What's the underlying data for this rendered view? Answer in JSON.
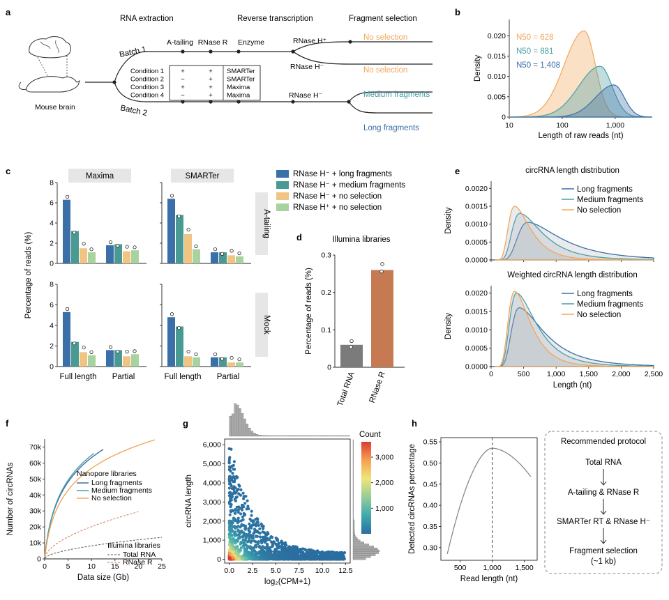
{
  "panel_letters": [
    "a",
    "b",
    "c",
    "d",
    "e",
    "f",
    "g",
    "h"
  ],
  "panel_a": {
    "stages": [
      "RNA extraction",
      "Reverse transcription",
      "Fragment selection"
    ],
    "source_label": "Mouse brain",
    "batches": [
      "Batch 1",
      "Batch 2"
    ],
    "treatments": [
      "A-tailing",
      "RNase R",
      "Enzyme"
    ],
    "conditions": [
      {
        "name": "Condition 1",
        "a": "+",
        "r": "+",
        "enzyme": "SMARTer"
      },
      {
        "name": "Condition 2",
        "a": "−",
        "r": "+",
        "enzyme": "SMARTer"
      },
      {
        "name": "Condition 3",
        "a": "+",
        "r": "+",
        "enzyme": "Maxima"
      },
      {
        "name": "Condition 4",
        "a": "−",
        "r": "+",
        "enzyme": "Maxima"
      }
    ],
    "rnaseh_plus": "RNase H⁺",
    "rnaseh_minus": "RNase H⁻",
    "rnaseh_minus2": "RNase H⁻",
    "outcomes": [
      "No selection",
      "No selection",
      "Medium fragments",
      "Long fragments"
    ],
    "colors": {
      "orange": "#f2a65a",
      "teal": "#4a9fa5",
      "blue": "#3b6fa8",
      "green": "#86c29a"
    }
  },
  "chart_data": [
    {
      "panel": "b",
      "type": "area",
      "xlabel": "Length of raw reads (nt)",
      "ylabel": "Density",
      "x_scale": "log",
      "xlim": [
        10,
        5000
      ],
      "ylim": [
        0,
        0.024
      ],
      "x_ticks": [
        "10",
        "100",
        "1,000"
      ],
      "y_ticks": [
        "0",
        "0.005",
        "0.010",
        "0.015",
        "0.020"
      ],
      "series": [
        {
          "name": "N50 = 628",
          "peak_x": 260,
          "peak_y": 0.0212,
          "sigma": 0.28,
          "color": "#f2a65a"
        },
        {
          "name": "N50 = 881",
          "peak_x": 520,
          "peak_y": 0.0125,
          "sigma": 0.3,
          "color": "#4a9fa5"
        },
        {
          "name": "N50 = 1,408",
          "peak_x": 950,
          "peak_y": 0.0079,
          "sigma": 0.26,
          "color": "#3b6fa8"
        }
      ]
    },
    {
      "panel": "c",
      "type": "bar",
      "ylabel": "Percentage of reads (%)",
      "columns": [
        "Maxima",
        "SMARTer"
      ],
      "rows": [
        "A-tailing",
        "Mock"
      ],
      "categories": [
        "Full length",
        "Partial"
      ],
      "ylim": [
        0,
        8
      ],
      "y_ticks": [
        "0",
        "2",
        "4",
        "6",
        "8"
      ],
      "legend": [
        "RNase H⁻ + long fragments",
        "RNase H⁻ + medium fragments",
        "RNase H⁻ + no selection",
        "RNase H⁺ + no selection"
      ],
      "colors": [
        "#3b6fa8",
        "#4a9a94",
        "#f0c584",
        "#a9d39e"
      ],
      "facets": [
        {
          "row": "A-tailing",
          "col": "Maxima",
          "values": [
            [
              6.3,
              3.2,
              1.5,
              1.1
            ],
            [
              1.8,
              1.9,
              1.2,
              1.3
            ]
          ]
        },
        {
          "row": "A-tailing",
          "col": "SMARTer",
          "values": [
            [
              6.4,
              4.8,
              2.9,
              1.4
            ],
            [
              1.1,
              1.1,
              0.8,
              0.7
            ]
          ]
        },
        {
          "row": "Mock",
          "col": "Maxima",
          "values": [
            [
              5.3,
              2.4,
              1.4,
              1.1
            ],
            [
              1.6,
              1.6,
              1.0,
              1.2
            ]
          ]
        },
        {
          "row": "Mock",
          "col": "SMARTer",
          "values": [
            [
              4.8,
              3.9,
              1.0,
              0.9
            ],
            [
              0.9,
              0.9,
              0.4,
              0.4
            ]
          ]
        }
      ]
    },
    {
      "panel": "d",
      "type": "bar",
      "title": "Illumina libraries",
      "ylabel": "Percentage of reads (%)",
      "categories": [
        "Total RNA",
        "RNase R"
      ],
      "values": [
        0.06,
        0.26
      ],
      "ylim": [
        0,
        0.3
      ],
      "y_ticks": [
        "0",
        "0.1",
        "0.2",
        "0.3"
      ],
      "colors": [
        "#7b7b7b",
        "#c67a52"
      ]
    },
    {
      "panel": "e",
      "type": "area",
      "xlabel": "Length (nt)",
      "ylabel": "Density",
      "xlim": [
        0,
        2500
      ],
      "ylim": [
        0,
        0.0022
      ],
      "x_ticks": [
        "0",
        "500",
        "1,000",
        "1,500",
        "2,000",
        "2,500"
      ],
      "y_ticks": [
        "0.0000",
        "0.0005",
        "0.0010",
        "0.0015",
        "0.0020"
      ],
      "subplots": [
        {
          "title": "circRNA length distribution",
          "series": [
            {
              "name": "Long fragments",
              "peak_x": 560,
              "peak_y": 0.00105,
              "color": "#3b6fa8"
            },
            {
              "name": "Medium fragments",
              "peak_x": 440,
              "peak_y": 0.0013,
              "color": "#4a9fa5"
            },
            {
              "name": "No selection",
              "peak_x": 360,
              "peak_y": 0.0015,
              "color": "#f2a65a"
            }
          ]
        },
        {
          "title": "Weighted circRNA length distribution",
          "series": [
            {
              "name": "Long fragments",
              "peak_x": 430,
              "peak_y": 0.0016,
              "color": "#3b6fa8"
            },
            {
              "name": "Medium fragments",
              "peak_x": 390,
              "peak_y": 0.002,
              "color": "#4a9fa5"
            },
            {
              "name": "No selection",
              "peak_x": 360,
              "peak_y": 0.00205,
              "color": "#f2a65a"
            }
          ]
        }
      ]
    },
    {
      "panel": "f",
      "type": "line",
      "xlabel": "Data size (Gb)",
      "ylabel": "Number of circRNAs",
      "xlim": [
        0,
        25
      ],
      "ylim": [
        0,
        75000
      ],
      "x_ticks": [
        "0",
        "5",
        "10",
        "15",
        "20",
        "25"
      ],
      "y_ticks": [
        "0",
        "10k",
        "20k",
        "30k",
        "40k",
        "50k",
        "60k",
        "70k"
      ],
      "legend_title_1": "Nanopore libraries",
      "legend_title_2": "Illumina libraries",
      "series": [
        {
          "name": "Long fragments",
          "x_max": 12.5,
          "y_max": 68500,
          "color": "#3b6fa8",
          "dash": false
        },
        {
          "name": "Medium fragments",
          "x_max": 10.5,
          "y_max": 66000,
          "color": "#4a9fa5",
          "dash": false
        },
        {
          "name": "No selection",
          "x_max": 23.5,
          "y_max": 74500,
          "color": "#f2a65a",
          "dash": false
        },
        {
          "name": "Total RNA",
          "x_max": 25,
          "y_max": 13500,
          "color": "#555555",
          "dash": true
        },
        {
          "name": "RNase R",
          "x_max": 20,
          "y_max": 29500,
          "color": "#c67a52",
          "dash": true
        }
      ]
    },
    {
      "panel": "g",
      "type": "heatmap",
      "xlabel": "log₂(CPM+1)",
      "ylabel": "circRNA length",
      "xlim": [
        -0.5,
        13
      ],
      "ylim": [
        -200,
        6300
      ],
      "x_ticks": [
        "0.0",
        "2.5",
        "5.0",
        "7.5",
        "10.0",
        "12.5"
      ],
      "y_ticks": [
        "0",
        "1,000",
        "2,000",
        "3,000",
        "4,000",
        "5,000",
        "6,000"
      ],
      "colorbar_title": "Count",
      "colorbar_ticks": [
        "1,000",
        "2,000",
        "3,000"
      ],
      "colorbar_max": 3600
    },
    {
      "panel": "h",
      "type": "line",
      "xlabel": "Read length (nt)",
      "ylabel": "Detected circRNAs percentage",
      "xlim": [
        200,
        1700
      ],
      "ylim": [
        0.27,
        0.56
      ],
      "x_ticks": [
        "500",
        "1,000",
        "1,500"
      ],
      "y_ticks": [
        "0.30",
        "0.35",
        "0.40",
        "0.45",
        "0.50",
        "0.55"
      ],
      "peak_x": 1000,
      "peak_y": 0.535,
      "start": [
        300,
        0.285
      ],
      "end": [
        1600,
        0.468
      ],
      "color": "#888888"
    }
  ],
  "protocol": {
    "title": "Recommended protocol",
    "steps": [
      "Total RNA",
      "A-tailing & RNase R",
      "SMARTer RT & RNase H⁻",
      "Fragment selection",
      "(~1 kb)"
    ]
  }
}
